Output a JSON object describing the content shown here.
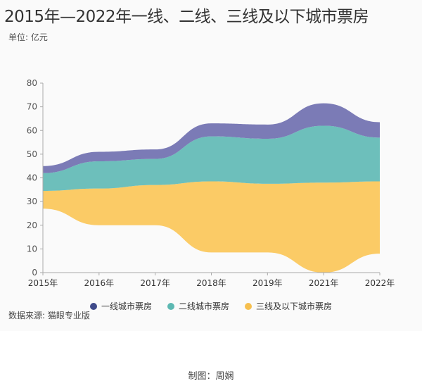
{
  "header": {
    "title": "2015年—2022年一线、二线、三线及以下城市票房",
    "unit": "单位: 亿元"
  },
  "footer": {
    "source": "数据来源: 猫眼专业版",
    "credit": "制图：周娴"
  },
  "chart_data": {
    "type": "area",
    "subtype": "streamgraph",
    "categories": [
      "2015年",
      "2016年",
      "2017年",
      "2018年",
      "2019年",
      "2021年",
      "2022年"
    ],
    "ylim": [
      0,
      80
    ],
    "yticks": [
      0,
      10,
      20,
      30,
      40,
      50,
      60,
      70,
      80
    ],
    "grid": false,
    "legend_position": "bottom",
    "baseline": [
      27,
      20,
      20,
      8.5,
      8.5,
      0,
      8
    ],
    "series": [
      {
        "name": "一线城市票房",
        "values": [
          3,
          4,
          4,
          5.5,
          6,
          9.5,
          6.5
        ],
        "color": "#7b7bb6"
      },
      {
        "name": "二线城市票房",
        "values": [
          7.5,
          11.5,
          11,
          19,
          19,
          24,
          18.5
        ],
        "color": "#6dbfbb"
      },
      {
        "name": "三线及以下城市票房",
        "values": [
          7.5,
          15.5,
          17,
          30,
          29,
          38,
          30.5
        ],
        "color": "#fbcb66"
      }
    ],
    "legend_colors": [
      "#3f4a8a",
      "#5cb8b2",
      "#f6bf4e"
    ]
  }
}
